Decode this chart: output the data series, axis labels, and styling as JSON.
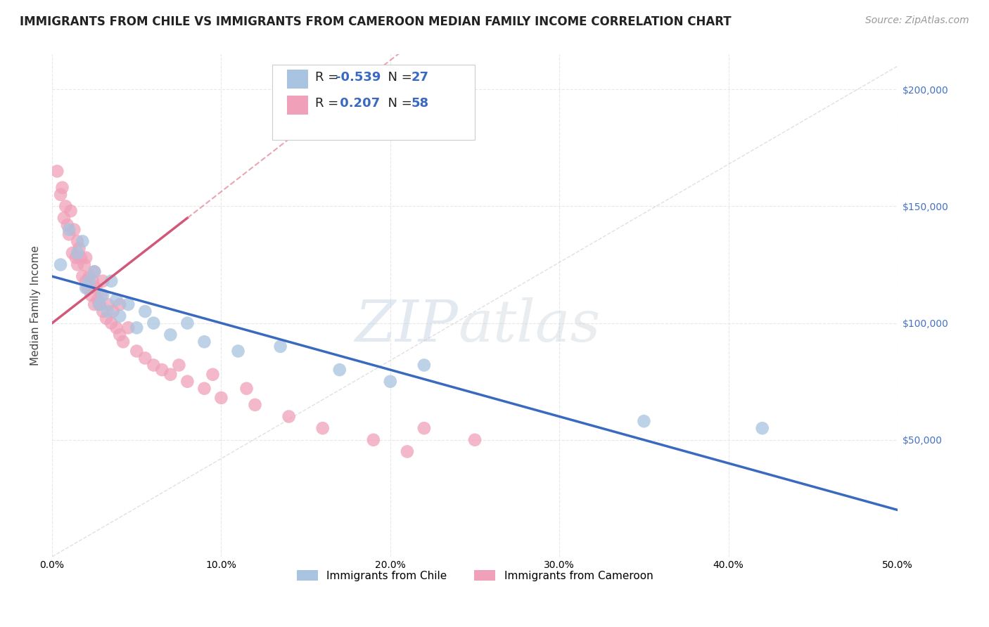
{
  "title": "IMMIGRANTS FROM CHILE VS IMMIGRANTS FROM CAMEROON MEDIAN FAMILY INCOME CORRELATION CHART",
  "source": "Source: ZipAtlas.com",
  "ylabel": "Median Family Income",
  "x_ticks": [
    0.0,
    10.0,
    20.0,
    30.0,
    40.0,
    50.0
  ],
  "x_tick_labels": [
    "0.0%",
    "10.0%",
    "20.0%",
    "30.0%",
    "40.0%",
    "50.0%"
  ],
  "y_ticks": [
    0,
    50000,
    100000,
    150000,
    200000
  ],
  "xlim": [
    0.0,
    50.0
  ],
  "ylim": [
    0,
    215000
  ],
  "chile_R": -0.539,
  "chile_N": 27,
  "cameroon_R": 0.207,
  "cameroon_N": 58,
  "chile_color": "#a8c4e0",
  "cameroon_color": "#f0a0b8",
  "chile_line_color": "#3a6abf",
  "cameroon_line_color": "#d05878",
  "cameroon_dash_color": "#e08090",
  "ref_line_color": "#cccccc",
  "watermark_zip": "ZIP",
  "watermark_atlas": "atlas",
  "watermark_color_zip": "#c5d5e5",
  "watermark_color_atlas": "#c5cfd5",
  "title_fontsize": 12,
  "source_fontsize": 10,
  "legend_fontsize": 13,
  "axis_label_fontsize": 11,
  "tick_fontsize": 10,
  "chile_points_x": [
    0.5,
    1.0,
    1.5,
    1.8,
    2.0,
    2.2,
    2.5,
    2.8,
    3.0,
    3.3,
    3.5,
    3.8,
    4.0,
    4.5,
    5.0,
    5.5,
    6.0,
    7.0,
    8.0,
    9.0,
    11.0,
    13.5,
    17.0,
    20.0,
    22.0,
    35.0,
    42.0
  ],
  "chile_points_y": [
    125000,
    140000,
    130000,
    135000,
    115000,
    118000,
    122000,
    108000,
    112000,
    105000,
    118000,
    110000,
    103000,
    108000,
    98000,
    105000,
    100000,
    95000,
    100000,
    92000,
    88000,
    90000,
    80000,
    75000,
    82000,
    58000,
    55000
  ],
  "cameroon_points_x": [
    0.3,
    0.5,
    0.6,
    0.7,
    0.8,
    0.9,
    1.0,
    1.1,
    1.2,
    1.3,
    1.4,
    1.5,
    1.5,
    1.6,
    1.7,
    1.8,
    1.9,
    2.0,
    2.0,
    2.1,
    2.2,
    2.3,
    2.4,
    2.5,
    2.5,
    2.6,
    2.7,
    2.8,
    2.9,
    3.0,
    3.0,
    3.2,
    3.3,
    3.5,
    3.6,
    3.8,
    4.0,
    4.0,
    4.2,
    4.5,
    5.0,
    5.5,
    6.0,
    6.5,
    7.0,
    7.5,
    8.0,
    9.0,
    9.5,
    10.0,
    11.5,
    12.0,
    14.0,
    16.0,
    19.0,
    21.0,
    22.0,
    25.0
  ],
  "cameroon_points_y": [
    165000,
    155000,
    158000,
    145000,
    150000,
    142000,
    138000,
    148000,
    130000,
    140000,
    128000,
    135000,
    125000,
    132000,
    128000,
    120000,
    125000,
    118000,
    128000,
    115000,
    120000,
    112000,
    118000,
    108000,
    122000,
    115000,
    110000,
    108000,
    112000,
    105000,
    118000,
    102000,
    108000,
    100000,
    105000,
    98000,
    95000,
    108000,
    92000,
    98000,
    88000,
    85000,
    82000,
    80000,
    78000,
    82000,
    75000,
    72000,
    78000,
    68000,
    72000,
    65000,
    60000,
    55000,
    50000,
    45000,
    55000,
    50000
  ],
  "background_color": "#ffffff",
  "plot_bg_color": "#ffffff",
  "grid_color": "#e8e8e8"
}
